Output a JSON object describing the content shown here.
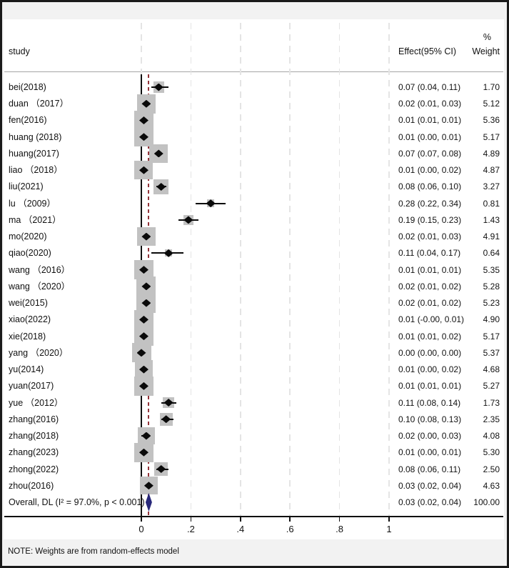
{
  "header": {
    "study_col": "study",
    "percent_label": "%",
    "effect_col": "Effect(95% CI)",
    "weight_col": "Weight"
  },
  "note": "NOTE: Weights are from random-effects model",
  "colors": {
    "square": "#c2c2c2",
    "marker": "#0a0a0a",
    "overall_dashed_line": "#93343a",
    "pooled_diamond": "#28287a",
    "gridline": "#e4e4e4",
    "background": "#ffffff",
    "outer_strip": "#f2f2f2"
  },
  "chart_data": {
    "type": "forest",
    "xlabel": "",
    "x_ticks": [
      {
        "value": 0.0,
        "label": "0"
      },
      {
        "value": 0.2,
        "label": ".2"
      },
      {
        "value": 0.4,
        "label": ".4"
      },
      {
        "value": 0.6,
        "label": ".6"
      },
      {
        "value": 0.8,
        "label": ".8"
      },
      {
        "value": 1.0,
        "label": "1"
      }
    ],
    "null_line_value": 0,
    "overall_effect_line_value": 0.03,
    "studies": [
      {
        "label": "bei(2018)",
        "effect": 0.07,
        "lo": 0.04,
        "hi": 0.11,
        "ci_text": "0.07 (0.04, 0.11)",
        "weight": 1.7,
        "weight_text": "1.70"
      },
      {
        "label": "duan （2017）",
        "effect": 0.02,
        "lo": 0.01,
        "hi": 0.03,
        "ci_text": "0.02 (0.01, 0.03)",
        "weight": 5.12,
        "weight_text": "5.12"
      },
      {
        "label": "fen(2016)",
        "effect": 0.01,
        "lo": 0.01,
        "hi": 0.01,
        "ci_text": "0.01 (0.01, 0.01)",
        "weight": 5.36,
        "weight_text": "5.36"
      },
      {
        "label": "huang (2018)",
        "effect": 0.01,
        "lo": 0.0,
        "hi": 0.01,
        "ci_text": "0.01 (0.00, 0.01)",
        "weight": 5.17,
        "weight_text": "5.17"
      },
      {
        "label": "huang(2017)",
        "effect": 0.07,
        "lo": 0.07,
        "hi": 0.08,
        "ci_text": "0.07 (0.07, 0.08)",
        "weight": 4.89,
        "weight_text": "4.89"
      },
      {
        "label": "liao （2018）",
        "effect": 0.01,
        "lo": 0.0,
        "hi": 0.02,
        "ci_text": "0.01 (0.00, 0.02)",
        "weight": 4.87,
        "weight_text": "4.87"
      },
      {
        "label": "liu(2021)",
        "effect": 0.08,
        "lo": 0.06,
        "hi": 0.1,
        "ci_text": "0.08 (0.06, 0.10)",
        "weight": 3.27,
        "weight_text": "3.27"
      },
      {
        "label": "lu （2009）",
        "effect": 0.28,
        "lo": 0.22,
        "hi": 0.34,
        "ci_text": "0.28 (0.22, 0.34)",
        "weight": 0.81,
        "weight_text": "0.81"
      },
      {
        "label": "ma （2021）",
        "effect": 0.19,
        "lo": 0.15,
        "hi": 0.23,
        "ci_text": "0.19 (0.15, 0.23)",
        "weight": 1.43,
        "weight_text": "1.43"
      },
      {
        "label": "mo(2020)",
        "effect": 0.02,
        "lo": 0.01,
        "hi": 0.03,
        "ci_text": "0.02 (0.01, 0.03)",
        "weight": 4.91,
        "weight_text": "4.91"
      },
      {
        "label": "qiao(2020)",
        "effect": 0.11,
        "lo": 0.04,
        "hi": 0.17,
        "ci_text": "0.11 (0.04, 0.17)",
        "weight": 0.64,
        "weight_text": "0.64"
      },
      {
        "label": "wang （2016）",
        "effect": 0.01,
        "lo": 0.01,
        "hi": 0.01,
        "ci_text": "0.01 (0.01, 0.01)",
        "weight": 5.35,
        "weight_text": "5.35"
      },
      {
        "label": "wang （2020）",
        "effect": 0.02,
        "lo": 0.01,
        "hi": 0.02,
        "ci_text": "0.02 (0.01, 0.02)",
        "weight": 5.28,
        "weight_text": "5.28"
      },
      {
        "label": "wei(2015)",
        "effect": 0.02,
        "lo": 0.01,
        "hi": 0.02,
        "ci_text": "0.02 (0.01, 0.02)",
        "weight": 5.23,
        "weight_text": "5.23"
      },
      {
        "label": "xiao(2022)",
        "effect": 0.01,
        "lo": -0.0,
        "hi": 0.01,
        "ci_text": "0.01 (-0.00, 0.01)",
        "weight": 4.9,
        "weight_text": "4.90"
      },
      {
        "label": "xie(2018)",
        "effect": 0.01,
        "lo": 0.01,
        "hi": 0.02,
        "ci_text": "0.01 (0.01, 0.02)",
        "weight": 5.17,
        "weight_text": "5.17"
      },
      {
        "label": "yang （2020）",
        "effect": 0.0,
        "lo": 0.0,
        "hi": 0.0,
        "ci_text": "0.00 (0.00, 0.00)",
        "weight": 5.37,
        "weight_text": "5.37"
      },
      {
        "label": "yu(2014)",
        "effect": 0.01,
        "lo": 0.0,
        "hi": 0.02,
        "ci_text": "0.01 (0.00, 0.02)",
        "weight": 4.68,
        "weight_text": "4.68"
      },
      {
        "label": "yuan(2017)",
        "effect": 0.01,
        "lo": 0.01,
        "hi": 0.01,
        "ci_text": "0.01 (0.01, 0.01)",
        "weight": 5.27,
        "weight_text": "5.27"
      },
      {
        "label": "yue （2012）",
        "effect": 0.11,
        "lo": 0.08,
        "hi": 0.14,
        "ci_text": "0.11 (0.08, 0.14)",
        "weight": 1.73,
        "weight_text": "1.73"
      },
      {
        "label": "zhang(2016)",
        "effect": 0.1,
        "lo": 0.08,
        "hi": 0.13,
        "ci_text": "0.10 (0.08, 0.13)",
        "weight": 2.35,
        "weight_text": "2.35"
      },
      {
        "label": "zhang(2018)",
        "effect": 0.02,
        "lo": 0.0,
        "hi": 0.03,
        "ci_text": "0.02 (0.00, 0.03)",
        "weight": 4.08,
        "weight_text": "4.08"
      },
      {
        "label": "zhang(2023)",
        "effect": 0.01,
        "lo": 0.0,
        "hi": 0.01,
        "ci_text": "0.01 (0.00, 0.01)",
        "weight": 5.3,
        "weight_text": "5.30"
      },
      {
        "label": "zhong(2022)",
        "effect": 0.08,
        "lo": 0.06,
        "hi": 0.11,
        "ci_text": "0.08 (0.06, 0.11)",
        "weight": 2.5,
        "weight_text": "2.50"
      },
      {
        "label": "zhou(2016)",
        "effect": 0.03,
        "lo": 0.02,
        "hi": 0.04,
        "ci_text": "0.03 (0.02, 0.04)",
        "weight": 4.63,
        "weight_text": "4.63"
      }
    ],
    "overall": {
      "label": "Overall, DL (I² = 97.0%, p < 0.001)",
      "effect": 0.03,
      "lo": 0.02,
      "hi": 0.04,
      "ci_text": "0.03 (0.02, 0.04)",
      "weight_text": "100.00"
    }
  }
}
